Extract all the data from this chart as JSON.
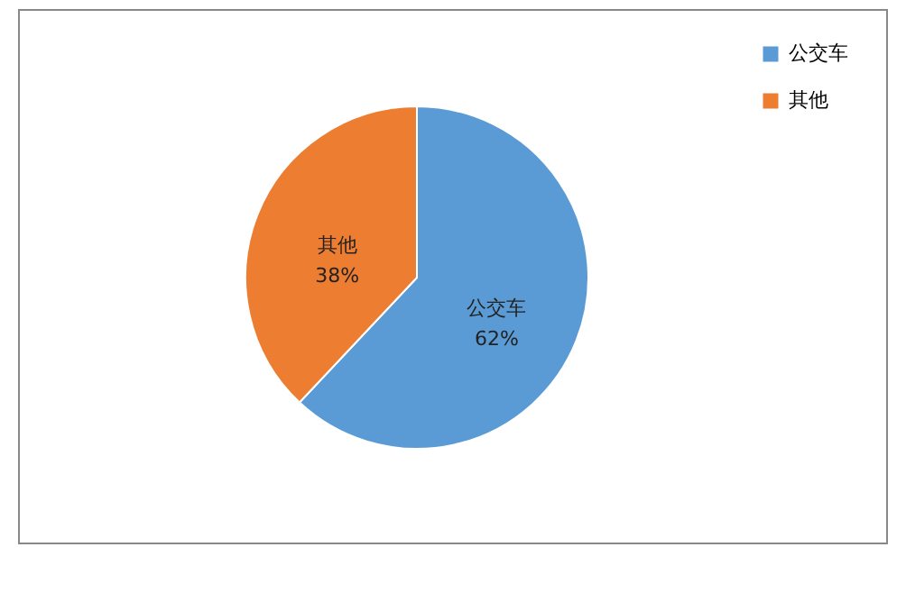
{
  "chart_data": {
    "type": "pie",
    "categories": [
      "公交车",
      "其他"
    ],
    "values": [
      62,
      38
    ],
    "colors": [
      "#5b9bd5",
      "#ed7d31"
    ],
    "value_labels": [
      "62%",
      "38%"
    ],
    "legend": "right"
  }
}
